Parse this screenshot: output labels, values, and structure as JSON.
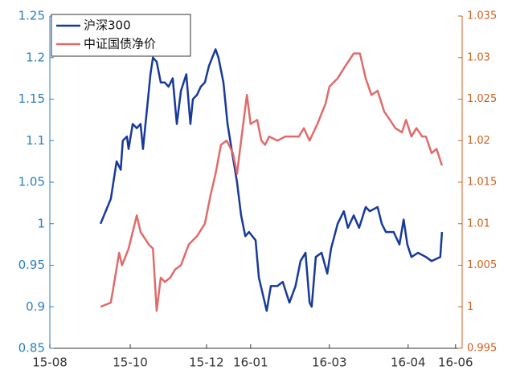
{
  "chart_data": {
    "type": "line",
    "xlim": [
      0,
      10
    ],
    "xticks": [
      {
        "value": 0,
        "label": "15-08"
      },
      {
        "value": 1.95,
        "label": "15-10"
      },
      {
        "value": 3.8,
        "label": "15-12"
      },
      {
        "value": 4.87,
        "label": "16-01"
      },
      {
        "value": 6.78,
        "label": "16-03"
      },
      {
        "value": 8.69,
        "label": "16-04"
      },
      {
        "value": 9.84,
        "label": "16-06"
      }
    ],
    "ylim": [
      0.85,
      1.25
    ],
    "yticks": [
      0.85,
      0.9,
      0.95,
      1,
      1.05,
      1.1,
      1.15,
      1.2,
      1.25
    ],
    "y2lim": [
      0.995,
      1.035
    ],
    "y2ticks": [
      0.995,
      1,
      1.005,
      1.01,
      1.015,
      1.02,
      1.025,
      1.03,
      1.035
    ],
    "ycolor": "#2a7fc0",
    "y2color": "#d35f1e",
    "legend": "upper left",
    "series": [
      {
        "name": "沪深300",
        "color": "#17399a",
        "x": [
          1.23,
          1.48,
          1.62,
          1.72,
          1.77,
          1.87,
          1.91,
          2.01,
          2.11,
          2.2,
          2.26,
          2.36,
          2.44,
          2.5,
          2.59,
          2.69,
          2.79,
          2.88,
          2.98,
          3.08,
          3.18,
          3.31,
          3.41,
          3.47,
          3.57,
          3.66,
          3.76,
          3.86,
          4.02,
          4.09,
          4.21,
          4.31,
          4.44,
          4.54,
          4.64,
          4.74,
          4.83,
          4.99,
          5.07,
          5.19,
          5.26,
          5.36,
          5.52,
          5.65,
          5.81,
          5.96,
          6.08,
          6.2,
          6.3,
          6.35,
          6.45,
          6.59,
          6.73,
          6.82,
          6.98,
          7.13,
          7.23,
          7.37,
          7.5,
          7.66,
          7.76,
          7.95,
          8.05,
          8.15,
          8.34,
          8.48,
          8.58,
          8.67,
          8.77,
          8.93,
          9.12,
          9.26,
          9.47,
          9.51
        ],
        "values": [
          1.0,
          1.03,
          1.075,
          1.065,
          1.1,
          1.105,
          1.09,
          1.12,
          1.115,
          1.12,
          1.09,
          1.14,
          1.18,
          1.2,
          1.195,
          1.17,
          1.17,
          1.165,
          1.175,
          1.12,
          1.16,
          1.18,
          1.12,
          1.15,
          1.155,
          1.165,
          1.17,
          1.19,
          1.21,
          1.2,
          1.17,
          1.12,
          1.08,
          1.05,
          1.01,
          0.985,
          0.99,
          0.98,
          0.935,
          0.91,
          0.895,
          0.925,
          0.925,
          0.93,
          0.905,
          0.925,
          0.955,
          0.965,
          0.905,
          0.9,
          0.96,
          0.965,
          0.94,
          0.97,
          1.0,
          1.015,
          0.995,
          1.01,
          0.995,
          1.02,
          1.015,
          1.02,
          1.0,
          0.99,
          0.99,
          0.975,
          1.005,
          0.975,
          0.96,
          0.965,
          0.96,
          0.955,
          0.96,
          0.99
        ]
      },
      {
        "name": "中证国债净价",
        "color": "#e06b6b",
        "axis": "y2",
        "x": [
          1.23,
          1.48,
          1.58,
          1.68,
          1.75,
          1.91,
          2.11,
          2.2,
          2.4,
          2.5,
          2.59,
          2.69,
          2.79,
          2.92,
          3.04,
          3.18,
          3.37,
          3.57,
          3.76,
          3.9,
          4.02,
          4.15,
          4.29,
          4.44,
          4.54,
          4.64,
          4.78,
          4.87,
          5.03,
          5.13,
          5.22,
          5.32,
          5.52,
          5.71,
          5.91,
          6.04,
          6.16,
          6.3,
          6.49,
          6.69,
          6.78,
          6.98,
          7.17,
          7.37,
          7.52,
          7.66,
          7.8,
          7.95,
          8.11,
          8.25,
          8.38,
          8.54,
          8.64,
          8.77,
          8.89,
          9.03,
          9.12,
          9.26,
          9.38,
          9.51
        ],
        "values": [
          1.0,
          1.0005,
          1.0035,
          1.0065,
          1.005,
          1.007,
          1.011,
          1.009,
          1.0075,
          1.007,
          0.9995,
          1.0035,
          1.003,
          1.0035,
          1.0045,
          1.005,
          1.0075,
          1.0085,
          1.01,
          1.0135,
          1.016,
          1.0195,
          1.02,
          1.0185,
          1.016,
          1.02,
          1.0255,
          1.022,
          1.0225,
          1.02,
          1.0195,
          1.0205,
          1.02,
          1.0205,
          1.0205,
          1.0205,
          1.0215,
          1.02,
          1.022,
          1.0245,
          1.0265,
          1.0275,
          1.029,
          1.0305,
          1.0305,
          1.0275,
          1.0255,
          1.026,
          1.0235,
          1.0225,
          1.0215,
          1.021,
          1.0225,
          1.0205,
          1.0215,
          1.0205,
          1.0205,
          1.0185,
          1.019,
          1.017
        ]
      }
    ]
  }
}
